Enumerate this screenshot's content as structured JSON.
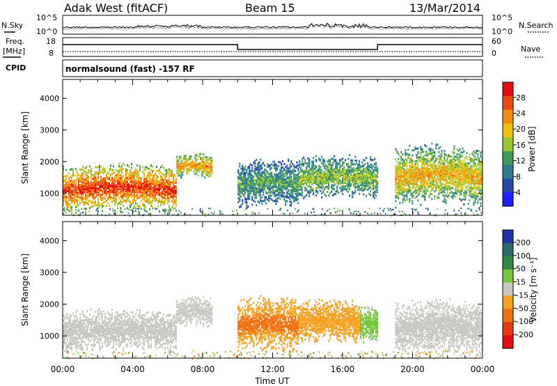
{
  "header": {
    "site": "Adak West (fitACF)",
    "beam": "Beam 15",
    "date": "13/Mar/2014"
  },
  "noise_panel": {
    "left_label": "N.Sky",
    "right_label": "N.Search",
    "ticks": [
      "10^5",
      "10^0"
    ]
  },
  "freq_panel": {
    "label_line1": "Freq.",
    "label_line2": "[MHz]",
    "left_ticks": [
      "18",
      "8"
    ],
    "right_ticks": [
      "60",
      "0"
    ],
    "right_label": "Nave",
    "cpid_label": "CPID",
    "mode_text": "normalsound (fast) -157 RF"
  },
  "chart_data": [
    {
      "type": "heatmap",
      "name": "power",
      "ylabel": "Slant Range [km]",
      "xlabel": "",
      "ylim": [
        300,
        4600
      ],
      "yticks": [
        "1000",
        "2000",
        "3000",
        "4000"
      ],
      "colorbar": {
        "label": "Power [dB]",
        "ticks": [
          "4",
          "8",
          "12",
          "16",
          "20",
          "24",
          "28"
        ],
        "range": [
          0,
          30
        ],
        "colors": [
          "#1e1eff",
          "#2348a8",
          "#2e7a8e",
          "#3c9a58",
          "#9ac832",
          "#f0c010",
          "#f58a10",
          "#ee4a12",
          "#e30f0f"
        ]
      },
      "echo_bands": [
        {
          "t0": 0.0,
          "t1": 6.5,
          "center_km": 1200,
          "width_km": 800,
          "power": 27
        },
        {
          "t0": 6.5,
          "t1": 8.5,
          "center_km": 1900,
          "width_km": 400,
          "power": 22
        },
        {
          "t0": 10.0,
          "t1": 13.5,
          "center_km": 1350,
          "width_km": 800,
          "power": 12
        },
        {
          "t0": 13.5,
          "t1": 18.0,
          "center_km": 1550,
          "width_km": 700,
          "power": 15
        },
        {
          "t0": 19.0,
          "t1": 24.0,
          "center_km": 1600,
          "width_km": 1000,
          "power": 20
        }
      ]
    },
    {
      "type": "heatmap",
      "name": "velocity",
      "ylabel": "Slant Range [km]",
      "xlabel": "Time UT",
      "ylim": [
        300,
        4600
      ],
      "yticks": [
        "1000",
        "2000",
        "3000",
        "4000"
      ],
      "xticks": [
        "00:00",
        "04:00",
        "08:00",
        "12:00",
        "16:00",
        "20:00",
        "00:00"
      ],
      "xlim_hours": [
        0,
        24
      ],
      "colorbar": {
        "label": "Velocity [m s⁻¹]",
        "ticks": [
          "200",
          "100",
          "50",
          "15",
          "-15",
          "-50",
          "-100",
          "-200"
        ],
        "colors": [
          "#2030a8",
          "#2a6a6a",
          "#2e8a3e",
          "#72c83a",
          "#c8c8c0",
          "#f5a020",
          "#f07010",
          "#e83a10",
          "#e30f0f"
        ]
      },
      "echo_bands": [
        {
          "t0": 0.0,
          "t1": 6.5,
          "center_km": 1200,
          "width_km": 700,
          "velocity": 0
        },
        {
          "t0": 6.5,
          "t1": 8.5,
          "center_km": 1800,
          "width_km": 500,
          "velocity": 0
        },
        {
          "t0": 10.0,
          "t1": 13.5,
          "center_km": 1400,
          "width_km": 900,
          "velocity": -60
        },
        {
          "t0": 13.5,
          "t1": 17.0,
          "center_km": 1500,
          "width_km": 700,
          "velocity": -40
        },
        {
          "t0": 17.0,
          "t1": 18.0,
          "center_km": 1400,
          "width_km": 600,
          "velocity": 30
        },
        {
          "t0": 19.0,
          "t1": 24.0,
          "center_km": 1300,
          "width_km": 900,
          "velocity": 0
        }
      ]
    }
  ]
}
